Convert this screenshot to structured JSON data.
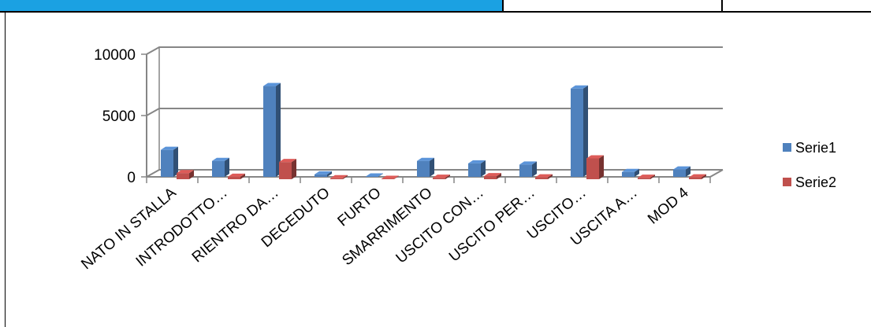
{
  "chart_data": {
    "type": "bar",
    "categories": [
      "NATO IN STALLA",
      "INTRODOTTO…",
      "RIENTRO DA…",
      "DECEDUTO",
      "FURTO",
      "SMARRIMENTO",
      "USCITO CON…",
      "USCITO PER…",
      "USCITO…",
      "USCITA A…",
      "MOD 4"
    ],
    "series": [
      {
        "name": "Serie1",
        "values": [
          2200,
          1300,
          7400,
          200,
          0,
          1300,
          1100,
          1000,
          7200,
          400,
          600
        ]
      },
      {
        "name": "Serie2",
        "values": [
          500,
          200,
          1400,
          80,
          0,
          120,
          250,
          150,
          1700,
          120,
          150
        ]
      }
    ],
    "yticks": [
      "0",
      "5000",
      "10000"
    ],
    "ylim": [
      0,
      10000
    ],
    "grid": true,
    "legend_position": "right",
    "colors": {
      "Serie1": "#4f81bd",
      "Serie2": "#c0504d"
    }
  }
}
